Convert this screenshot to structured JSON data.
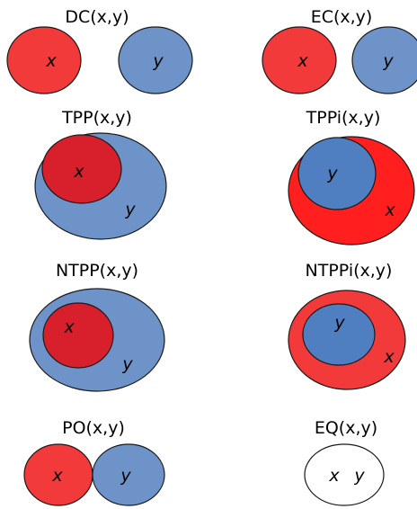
{
  "colors": {
    "red": "#f23a3a",
    "dark_red": "#d8202c",
    "blue": "#6e93c9",
    "mid_blue": "#4f7fc0",
    "bright_red": "#ff1f1f",
    "white": "#ffffff"
  },
  "panels": [
    {
      "id": "dc",
      "title": "DC(x,y)",
      "x_label": "x",
      "y_label": "y"
    },
    {
      "id": "ec",
      "title": "EC(x,y)",
      "x_label": "x",
      "y_label": "y"
    },
    {
      "id": "tpp",
      "title": "TPP(x,y)",
      "x_label": "x",
      "y_label": "y"
    },
    {
      "id": "tppi",
      "title": "TPPi(x,y)",
      "x_label": "x",
      "y_label": "y"
    },
    {
      "id": "ntpp",
      "title": "NTPP(x,y)",
      "x_label": "x",
      "y_label": "y"
    },
    {
      "id": "ntppi",
      "title": "NTPPi(x,y)",
      "x_label": "x",
      "y_label": "y"
    },
    {
      "id": "po",
      "title": "PO(x,y)",
      "x_label": "x",
      "y_label": "y"
    },
    {
      "id": "eq",
      "title": "EQ(x,y)",
      "x_label": "x",
      "y_label": "y"
    }
  ]
}
